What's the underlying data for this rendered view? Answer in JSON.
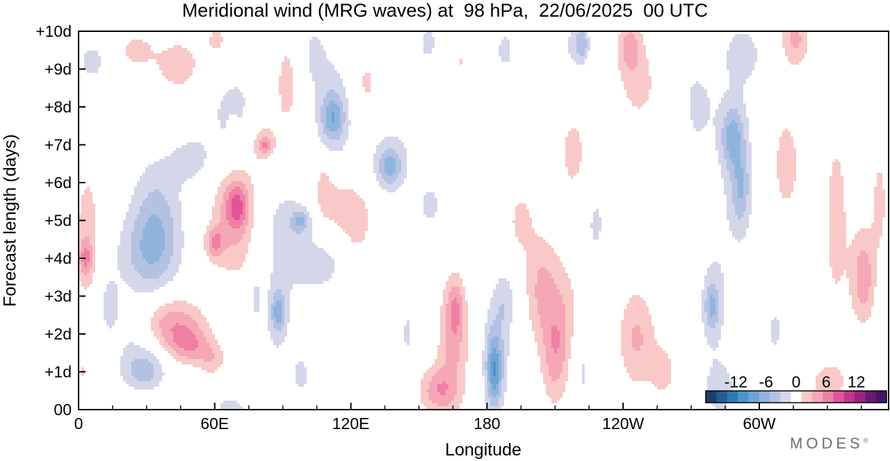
{
  "chart_data": {
    "type": "heatmap",
    "title": "Meridional wind (MRG waves) at  98 hPa,  22/06/2025  00 UTC",
    "xlabel": "Longitude",
    "ylabel": "Forecast length (days)",
    "x_ticks": [
      "0",
      "60E",
      "120E",
      "180",
      "120W",
      "60W"
    ],
    "x_tick_values": [
      0,
      60,
      120,
      180,
      240,
      300
    ],
    "xlim": [
      0,
      357
    ],
    "y_ticks": [
      "00",
      "+1d",
      "+2d",
      "+3d",
      "+4d",
      "+5d",
      "+6d",
      "+7d",
      "+8d",
      "+9d",
      "+10d"
    ],
    "ylim": [
      0,
      10
    ],
    "colorbar": {
      "labels": [
        "-12",
        "-6",
        "0",
        "6",
        "12"
      ],
      "label_values": [
        -12,
        -6,
        0,
        6,
        12
      ],
      "levels": [
        -16,
        -14,
        -12,
        -10,
        -8,
        -6,
        -4,
        -2,
        2,
        4,
        6,
        8,
        10,
        12,
        14,
        16
      ],
      "colors": [
        "#1d3f6e",
        "#245b93",
        "#2e79b5",
        "#4b93c8",
        "#6ca4d4",
        "#8fb4dc",
        "#b3c1e2",
        "#d4d6ea",
        "#ffffff",
        "#f8c9c7",
        "#f5a7b6",
        "#ef7fa3",
        "#e0559a",
        "#c2348d",
        "#9a2382",
        "#6b1a6e",
        "#481466"
      ]
    },
    "features": [
      {
        "lon": 6,
        "day": 9.2,
        "dlon": 6,
        "dday": 0.5,
        "amp": -3
      },
      {
        "lon": 25,
        "day": 9.5,
        "dlon": 8,
        "dday": 0.5,
        "amp": 2.6
      },
      {
        "lon": 44,
        "day": 9.1,
        "dlon": 12,
        "dday": 0.8,
        "amp": 3
      },
      {
        "lon": 61,
        "day": 9.8,
        "dlon": 5,
        "dday": 0.5,
        "amp": 2.5
      },
      {
        "lon": 70,
        "day": 7.8,
        "dlon": 14,
        "dday": 1.2,
        "amp": -3
      },
      {
        "lon": 50,
        "day": 6.6,
        "dlon": 10,
        "dday": 0.7,
        "amp": -2.6
      },
      {
        "lon": 34,
        "day": 4.9,
        "dlon": 11,
        "dday": 1.6,
        "amp": -5.2
      },
      {
        "lon": 29,
        "day": 4.1,
        "dlon": 14,
        "dday": 1.0,
        "amp": -3
      },
      {
        "lon": 26,
        "day": 1.9,
        "dlon": 12,
        "dday": 1.0,
        "amp": -2.6
      },
      {
        "lon": 29,
        "day": 1.0,
        "dlon": 9,
        "dday": 0.5,
        "amp": -4.5
      },
      {
        "lon": 13,
        "day": 2.8,
        "dlon": 5,
        "dday": 0.8,
        "amp": -2.5
      },
      {
        "lon": 40,
        "day": 2.3,
        "dlon": 14,
        "dday": 0.7,
        "amp": 5.8
      },
      {
        "lon": 49,
        "day": 1.7,
        "dlon": 10,
        "dday": 0.5,
        "amp": 5
      },
      {
        "lon": 59,
        "day": 1.3,
        "dlon": 6,
        "dday": 0.4,
        "amp": 3
      },
      {
        "lon": 4,
        "day": 4.6,
        "dlon": 6,
        "dday": 2.0,
        "amp": 3
      },
      {
        "lon": 3,
        "day": 4.0,
        "dlon": 3,
        "dday": 0.5,
        "amp": 4.5
      },
      {
        "lon": 2,
        "day": 1.0,
        "dlon": 2,
        "dday": 0.3,
        "amp": 2.2
      },
      {
        "lon": 68,
        "day": 5.0,
        "dlon": 10,
        "dday": 1.5,
        "amp": 4.5
      },
      {
        "lon": 70,
        "day": 5.4,
        "dlon": 5,
        "dday": 0.6,
        "amp": 5.5
      },
      {
        "lon": 60,
        "day": 4.4,
        "dlon": 4,
        "dday": 0.4,
        "amp": 5
      },
      {
        "lon": 80,
        "day": 7.2,
        "dlon": 8,
        "dday": 1.0,
        "amp": 3
      },
      {
        "lon": 92,
        "day": 8.6,
        "dlon": 8,
        "dday": 1.6,
        "amp": 2.6
      },
      {
        "lon": 82,
        "day": 7.0,
        "dlon": 3,
        "dday": 0.25,
        "amp": 4.5
      },
      {
        "lon": 68,
        "day": 7.5,
        "dlon": 2,
        "dday": 0.25,
        "amp": 2.4
      },
      {
        "lon": 92,
        "day": 4.8,
        "dlon": 11,
        "dday": 1.2,
        "amp": -3
      },
      {
        "lon": 98,
        "day": 5.0,
        "dlon": 4,
        "dday": 0.3,
        "amp": -4.5
      },
      {
        "lon": 106,
        "day": 3.8,
        "dlon": 14,
        "dday": 0.8,
        "amp": -2.6
      },
      {
        "lon": 88,
        "day": 2.5,
        "dlon": 6,
        "dday": 1.2,
        "amp": -3
      },
      {
        "lon": 88,
        "day": 2.6,
        "dlon": 3,
        "dday": 0.5,
        "amp": -4.5
      },
      {
        "lon": 78,
        "day": 3.0,
        "dlon": 3,
        "dday": 0.8,
        "amp": -2.5
      },
      {
        "lon": 98,
        "day": 0.9,
        "dlon": 5,
        "dday": 0.7,
        "amp": -2.5
      },
      {
        "lon": 67,
        "day": 0.0,
        "dlon": 8,
        "dday": 0.4,
        "amp": -3
      },
      {
        "lon": 113,
        "day": 8.0,
        "dlon": 10,
        "dday": 1.5,
        "amp": -3.2
      },
      {
        "lon": 112,
        "day": 7.7,
        "dlon": 5,
        "dday": 0.6,
        "amp": -5.2
      },
      {
        "lon": 138,
        "day": 6.6,
        "dlon": 10,
        "dday": 0.9,
        "amp": -2.8
      },
      {
        "lon": 137,
        "day": 6.4,
        "dlon": 5,
        "dday": 0.5,
        "amp": -4.5
      },
      {
        "lon": 155,
        "day": 5.4,
        "dlon": 7,
        "dday": 0.8,
        "amp": -2.4
      },
      {
        "lon": 103,
        "day": 9.4,
        "dlon": 6,
        "dday": 0.9,
        "amp": -2.4
      },
      {
        "lon": 108,
        "day": 6.0,
        "dlon": 4,
        "dday": 0.8,
        "amp": 2.3
      },
      {
        "lon": 126,
        "day": 8.6,
        "dlon": 8,
        "dday": 1.0,
        "amp": 2.6
      },
      {
        "lon": 115,
        "day": 5.4,
        "dlon": 11,
        "dday": 0.8,
        "amp": 3
      },
      {
        "lon": 123,
        "day": 4.8,
        "dlon": 6,
        "dday": 0.8,
        "amp": 2.6
      },
      {
        "lon": 145,
        "day": 2.0,
        "dlon": 3,
        "dday": 0.8,
        "amp": -2.4
      },
      {
        "lon": 154,
        "day": 9.7,
        "dlon": 6,
        "dday": 0.7,
        "amp": -2.4
      },
      {
        "lon": 165,
        "day": 1.6,
        "dlon": 7,
        "dday": 1.6,
        "amp": 4.2
      },
      {
        "lon": 158,
        "day": 0.5,
        "dlon": 8,
        "dday": 0.6,
        "amp": 5
      },
      {
        "lon": 166,
        "day": 2.7,
        "dlon": 4,
        "dday": 0.8,
        "amp": 4.5
      },
      {
        "lon": 168,
        "day": 9.2,
        "dlon": 2,
        "dday": 0.2,
        "amp": 2.3
      },
      {
        "lon": 184,
        "day": 1.4,
        "dlon": 6,
        "dday": 1.5,
        "amp": -4.2
      },
      {
        "lon": 183,
        "day": 1.0,
        "dlon": 3,
        "dday": 0.9,
        "amp": -6.5
      },
      {
        "lon": 188,
        "day": 2.9,
        "dlon": 5,
        "dday": 0.8,
        "amp": -2.8
      },
      {
        "lon": 188,
        "day": 9.5,
        "dlon": 6,
        "dday": 0.8,
        "amp": -2.4
      },
      {
        "lon": 195,
        "day": 5.0,
        "dlon": 6,
        "dday": 0.9,
        "amp": 2.6
      },
      {
        "lon": 204,
        "day": 3.2,
        "dlon": 7,
        "dday": 1.4,
        "amp": 4.3
      },
      {
        "lon": 210,
        "day": 1.4,
        "dlon": 6,
        "dday": 1.3,
        "amp": 4.5
      },
      {
        "lon": 214,
        "day": 2.6,
        "dlon": 7,
        "dday": 1.5,
        "amp": 2.6
      },
      {
        "lon": 218,
        "day": 6.8,
        "dlon": 7,
        "dday": 1.3,
        "amp": 2.6
      },
      {
        "lon": 222,
        "day": 1.0,
        "dlon": 5,
        "dday": 1.0,
        "amp": -2.4
      },
      {
        "lon": 228,
        "day": 4.9,
        "dlon": 5,
        "dday": 1.0,
        "amp": -2.4
      },
      {
        "lon": 222,
        "day": 9.7,
        "dlon": 3,
        "dday": 0.5,
        "amp": -4.5
      },
      {
        "lon": 218,
        "day": 9.6,
        "dlon": 6,
        "dday": 0.6,
        "amp": -2.4
      },
      {
        "lon": 243,
        "day": 9.6,
        "dlon": 5,
        "dday": 0.7,
        "amp": 4.5
      },
      {
        "lon": 247,
        "day": 8.6,
        "dlon": 10,
        "dday": 1.2,
        "amp": 2.6
      },
      {
        "lon": 246,
        "day": 1.9,
        "dlon": 8,
        "dday": 1.3,
        "amp": 4.3
      },
      {
        "lon": 258,
        "day": 1.0,
        "dlon": 6,
        "dday": 0.8,
        "amp": 2.6
      },
      {
        "lon": 265,
        "day": 7.4,
        "dlon": 4,
        "dday": 1.0,
        "amp": 2.3
      },
      {
        "lon": 272,
        "day": 8.0,
        "dlon": 10,
        "dday": 1.3,
        "amp": -2.6
      },
      {
        "lon": 288,
        "day": 7.2,
        "dlon": 5,
        "dday": 0.8,
        "amp": -5
      },
      {
        "lon": 292,
        "day": 5.8,
        "dlon": 4,
        "dday": 1.0,
        "amp": -4
      },
      {
        "lon": 290,
        "day": 6.5,
        "dlon": 8,
        "dday": 2.5,
        "amp": -2.6
      },
      {
        "lon": 293,
        "day": 9.4,
        "dlon": 8,
        "dday": 0.7,
        "amp": -3
      },
      {
        "lon": 280,
        "day": 2.8,
        "dlon": 7,
        "dday": 1.8,
        "amp": -2.6
      },
      {
        "lon": 279,
        "day": 2.7,
        "dlon": 3,
        "dday": 0.6,
        "amp": -4.5
      },
      {
        "lon": 283,
        "day": 0.5,
        "dlon": 7,
        "dday": 0.7,
        "amp": -3
      },
      {
        "lon": 307,
        "day": 2.1,
        "dlon": 4,
        "dday": 0.7,
        "amp": -2.6
      },
      {
        "lon": 312,
        "day": 6.5,
        "dlon": 8,
        "dday": 1.8,
        "amp": 2.6
      },
      {
        "lon": 316,
        "day": 9.8,
        "dlon": 6,
        "dday": 0.7,
        "amp": 4.5
      },
      {
        "lon": 334,
        "day": 5.0,
        "dlon": 7,
        "dday": 3.2,
        "amp": 2.6
      },
      {
        "lon": 346,
        "day": 3.5,
        "dlon": 5,
        "dday": 1.2,
        "amp": 5.5
      },
      {
        "lon": 353,
        "day": 5.5,
        "dlon": 4,
        "dday": 1.5,
        "amp": 2.6
      },
      {
        "lon": 330,
        "day": 0.7,
        "dlon": 10,
        "dday": 0.6,
        "amp": 2.6
      }
    ]
  }
}
